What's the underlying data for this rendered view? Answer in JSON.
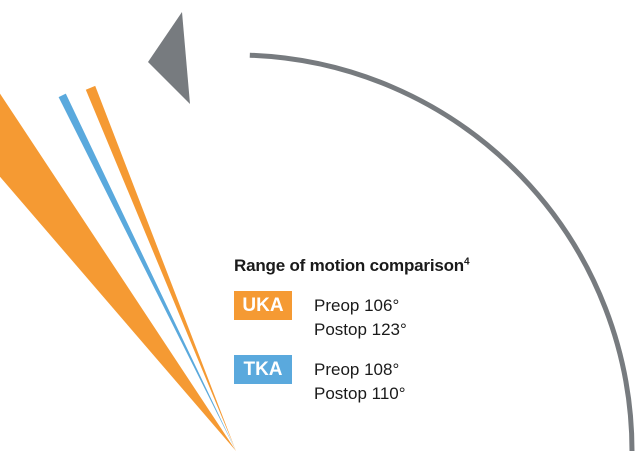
{
  "colors": {
    "uka": "#f59a33",
    "tka": "#5aa9dd",
    "arc": "#777b7f"
  },
  "chart_data": {
    "type": "radial-angle",
    "title": "Range of motion comparison",
    "title_superscript": "4",
    "unit": "°",
    "series": [
      {
        "name": "UKA",
        "values": [
          {
            "label": "Preop",
            "value": 106,
            "display": "Preop 106°"
          },
          {
            "label": "Postop",
            "value": 123,
            "display": "Postop 123°"
          }
        ]
      },
      {
        "name": "TKA",
        "values": [
          {
            "label": "Preop",
            "value": 108,
            "display": "Preop 108°"
          },
          {
            "label": "Postop",
            "value": 110,
            "display": "Postop 110°"
          }
        ]
      }
    ]
  }
}
